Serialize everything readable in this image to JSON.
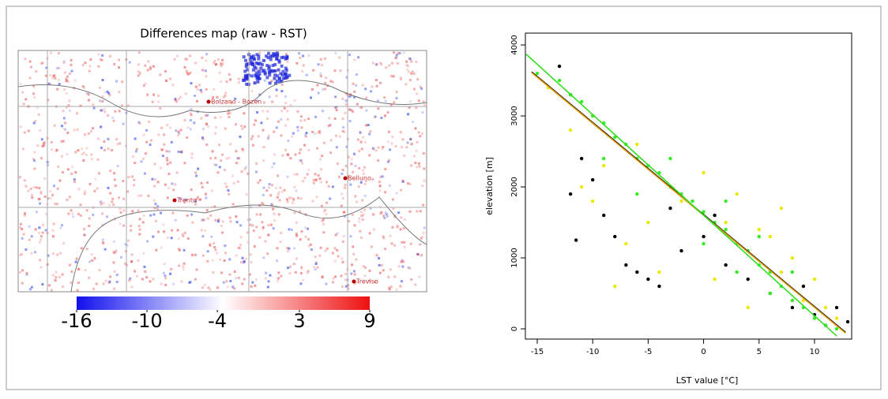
{
  "chart_data": [
    {
      "type": "map",
      "title": "Differences map (raw - RST)",
      "clim": [
        -16,
        9
      ],
      "cticks": [
        -16,
        -10,
        -4,
        3,
        9
      ],
      "places": [
        "Bolzano - Bozen",
        "Belluno",
        "Trento",
        "Treviso"
      ]
    },
    {
      "type": "scatter",
      "xlabel": "LST value [°C]",
      "ylabel": "elevation [m]",
      "xlim": [
        -16.07,
        13.35
      ],
      "ylim": [
        -144,
        4167
      ],
      "xticks": [
        -15,
        -10,
        -5,
        0,
        5,
        10
      ],
      "yticks": [
        0,
        1000,
        2000,
        3000,
        4000
      ],
      "series": [
        {
          "color": "#000000",
          "x": [
            -13,
            -12,
            -11,
            -10,
            -9,
            -8,
            -7,
            -6,
            -5,
            -4,
            -2,
            0,
            2,
            4,
            6,
            8,
            10,
            12,
            13,
            -12,
            -11.5,
            -3,
            1,
            9,
            11
          ],
          "y": [
            3700,
            3300,
            2400,
            2100,
            1600,
            1300,
            900,
            800,
            700,
            600,
            1100,
            1300,
            900,
            700,
            500,
            300,
            200,
            300,
            100,
            1900,
            1250,
            1700,
            1600,
            600,
            50
          ]
        },
        {
          "color": "#e8e800",
          "x": [
            -14,
            -12,
            -11,
            -10,
            -9,
            -7,
            -6,
            -4,
            -2,
            0,
            2,
            3,
            5,
            6,
            7,
            8,
            9,
            10,
            11,
            12,
            -8,
            4,
            1,
            -5,
            7
          ],
          "y": [
            3400,
            2800,
            2000,
            1800,
            2300,
            1200,
            2600,
            800,
            1800,
            2200,
            1500,
            1900,
            1400,
            1300,
            800,
            1000,
            400,
            700,
            300,
            150,
            600,
            300,
            700,
            1500,
            1700
          ]
        },
        {
          "color": "#33ee22",
          "x": [
            -15,
            -13,
            -12,
            -11,
            -10,
            -9,
            -8,
            -7,
            -6,
            -5,
            -4,
            -3,
            -2,
            -1,
            0,
            1,
            2,
            3,
            4,
            5,
            6,
            7,
            8,
            9,
            10,
            11,
            12,
            -6,
            -3,
            2,
            5,
            8,
            -9,
            0,
            6,
            3
          ],
          "y": [
            3600,
            3500,
            3300,
            3200,
            3000,
            2900,
            2700,
            2600,
            2400,
            2300,
            2200,
            2000,
            1900,
            1800,
            1650,
            1500,
            1400,
            1200,
            1100,
            900,
            800,
            600,
            400,
            300,
            150,
            50,
            0,
            1900,
            2400,
            1800,
            1300,
            800,
            2400,
            1200,
            500,
            800
          ]
        }
      ],
      "lines": [
        {
          "color": "#000000",
          "x": [
            -15.5,
            12.8
          ],
          "y": [
            3620,
            -50
          ]
        },
        {
          "color": "#e09a00",
          "x": [
            -15.5,
            12.8
          ],
          "y": [
            3610,
            -60
          ]
        },
        {
          "color": "#33dd22",
          "x": [
            -16,
            12
          ],
          "y": [
            3870,
            -100
          ]
        }
      ]
    }
  ]
}
